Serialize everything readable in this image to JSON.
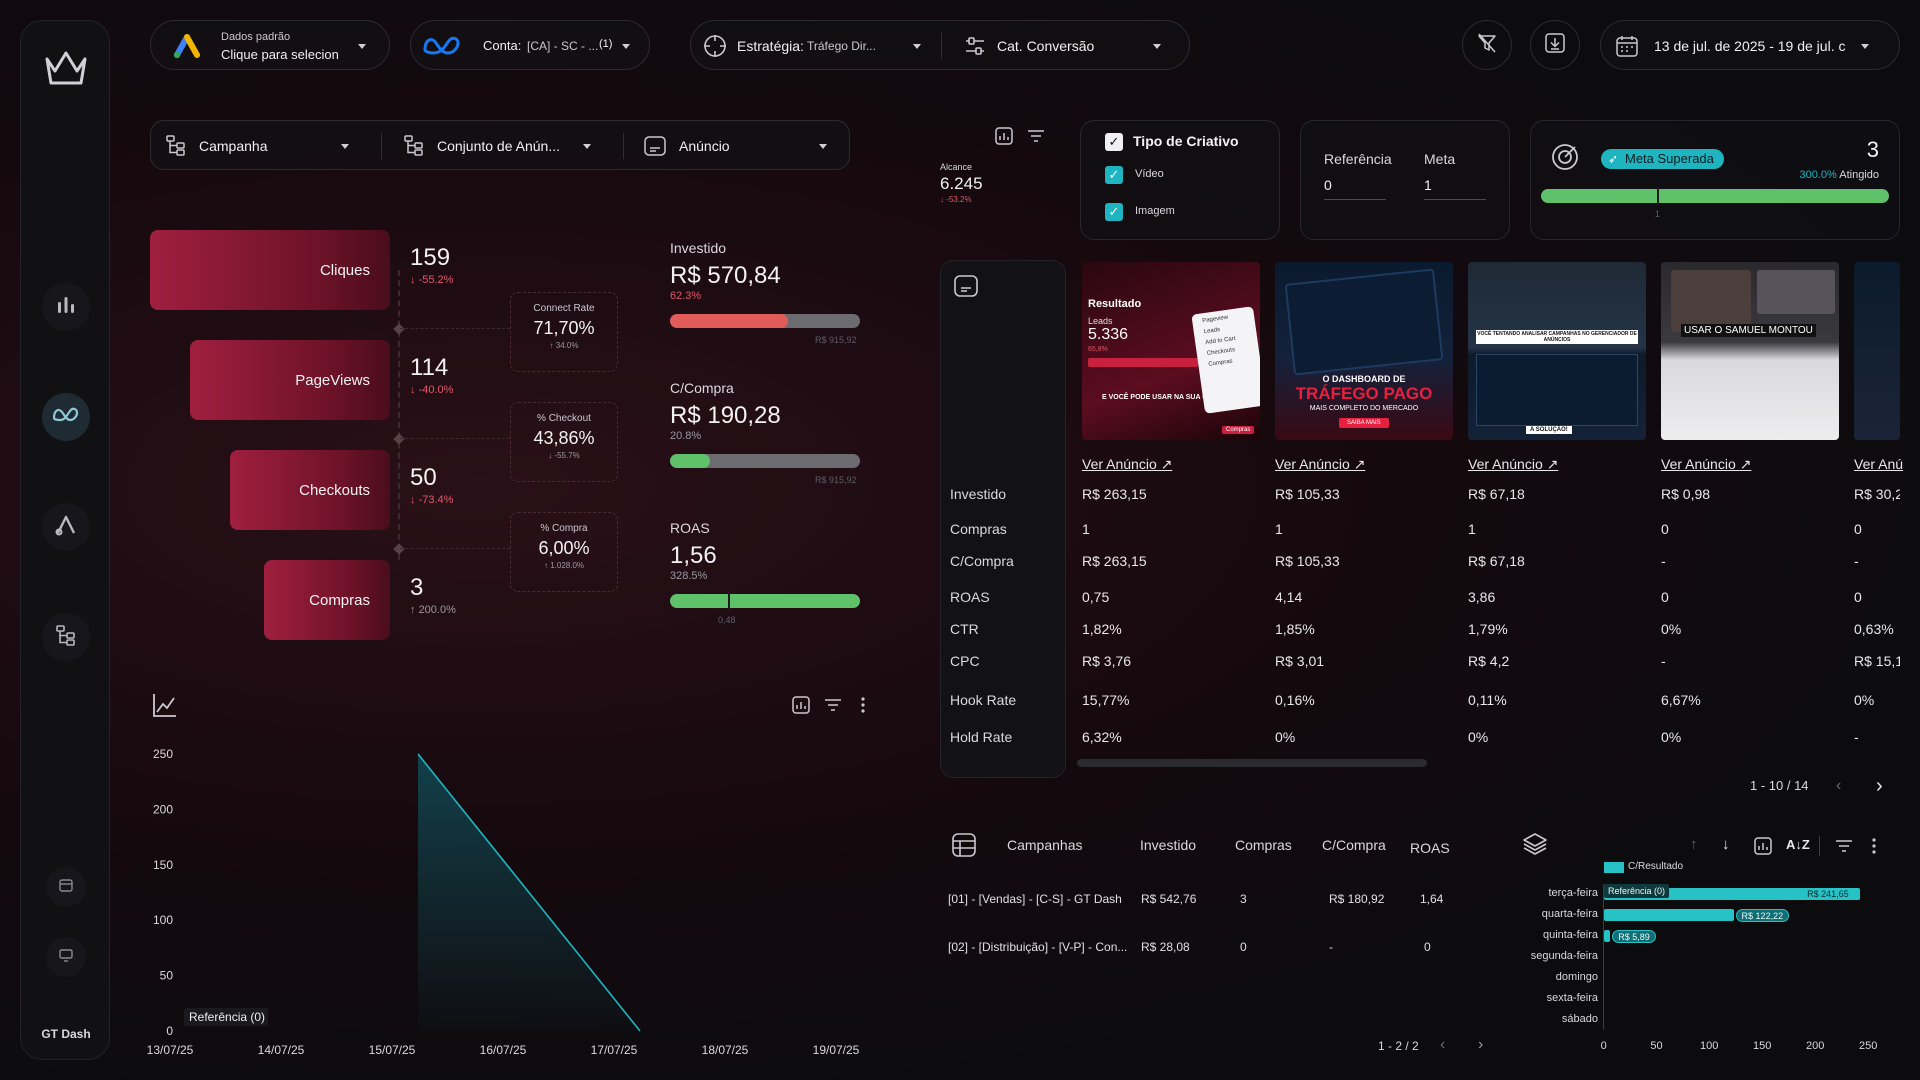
{
  "brand_name": "GT Dash",
  "header": {
    "account_selector": {
      "line1": "Dados padrão",
      "line2": "Clique para selecion"
    },
    "conta": {
      "label": "Conta:",
      "value": "[CA] - SC - ...",
      "count": "(1)"
    },
    "estrategia": {
      "label": "Estratégia:",
      "value": "Tráfego Dir..."
    },
    "cat_conversao": {
      "label": "Cat. Conversão"
    },
    "date_range": "13 de jul. de 2025 - 19 de jul. c"
  },
  "filters": {
    "campanha": "Campanha",
    "conjunto": "Conjunto de Anún...",
    "anuncio": "Anúncio"
  },
  "funnel": {
    "stages": [
      {
        "label": "Cliques",
        "value": "159",
        "change": "-55.2%",
        "direction": "down"
      },
      {
        "label": "PageViews",
        "value": "114",
        "change": "-40.0%",
        "direction": "down"
      },
      {
        "label": "Checkouts",
        "value": "50",
        "change": "-73.4%",
        "direction": "down"
      },
      {
        "label": "Compras",
        "value": "3",
        "change": "200.0%",
        "direction": "up"
      }
    ],
    "rates": [
      {
        "title": "Connect Rate",
        "value": "71,70%",
        "change": "34.0%",
        "direction": "up"
      },
      {
        "title": "% Checkout",
        "value": "43,86%",
        "change": "-55.7%",
        "direction": "down"
      },
      {
        "title": "% Compra",
        "value": "6,00%",
        "change": "1.028.0%",
        "direction": "up"
      }
    ]
  },
  "metrics": [
    {
      "title": "Investido",
      "value": "R$ 570,84",
      "pct": "62.3%",
      "direction": "down",
      "fill": 0.623,
      "color": "#e25b5b",
      "max": "R$ 915,92",
      "marker": ""
    },
    {
      "title": "C/Compra",
      "value": "R$ 190,28",
      "pct": "20.8%",
      "direction": "up",
      "fill": 0.208,
      "color": "#5fc16a",
      "max": "R$ 915,92",
      "marker": ""
    },
    {
      "title": "ROAS",
      "value": "1,56",
      "pct": "328.5%",
      "direction": "up",
      "fill": 1.0,
      "color": "#5fc16a",
      "max": "",
      "marker": "0,48",
      "marker_frac": 0.307
    }
  ],
  "alcance": {
    "label": "Alcance",
    "value": "6.245",
    "change": "-53.2%"
  },
  "tipo_criativo": {
    "title": "Tipo de Criativo",
    "options": [
      "Vídeo",
      "Imagem"
    ]
  },
  "referencia": {
    "label": "Referência",
    "value": "0"
  },
  "meta": {
    "label": "Meta",
    "value": "1"
  },
  "meta_superada": {
    "label": "Meta Superada",
    "count": "3",
    "pct": "300.0%",
    "atingido": "Atingido",
    "marker": "1",
    "progress": 1.0,
    "marker_frac": 0.333
  },
  "creatives": {
    "row_labels": [
      "Investido",
      "Compras",
      "C/Compra",
      "ROAS",
      "CTR",
      "CPC",
      "Hook Rate",
      "Hold Rate"
    ],
    "link_text": "Ver Anúncio ↗",
    "columns": [
      {
        "values": [
          "R$ 263,15",
          "1",
          "R$ 263,15",
          "0,75",
          "1,82%",
          "R$ 3,76",
          "15,77%",
          "6,32%"
        ],
        "thumb": {
          "t1": "Resultado",
          "t2": "Leads",
          "t3": "5.336",
          "t4": "65,8%",
          "t5": "E VOCÊ PODE USAR NA SUA OPERAÇÃO",
          "m1": "Pageview",
          "m2": "Leads",
          "m3": "Add to Cart",
          "m4": "Checkouts",
          "m5": "Compras",
          "m6": "Compras"
        }
      },
      {
        "values": [
          "R$ 105,33",
          "1",
          "R$ 105,33",
          "4,14",
          "1,85%",
          "R$ 3,01",
          "0,16%",
          "0%"
        ],
        "thumb": {
          "t1": "O DASHBOARD DE",
          "t2": "TRÁFEGO PAGO",
          "t3": "MAIS COMPLETO DO MERCADO",
          "t4": "SAIBA MAIS"
        }
      },
      {
        "values": [
          "R$ 67,18",
          "1",
          "R$ 67,18",
          "3,86",
          "1,79%",
          "R$ 4,2",
          "0,11%",
          "0%"
        ],
        "thumb": {
          "t1": "VOCÊ TENTANDO ANALISAR CAMPANHAS NO GERENCIADOR DE ANÚNCIOS",
          "t2": "A SOLUÇÃO!"
        }
      },
      {
        "values": [
          "R$ 0,98",
          "0",
          "-",
          "0",
          "0%",
          "-",
          "6,67%",
          "0%"
        ],
        "thumb": {
          "t1": "USAR O SAMUEL MONTOU"
        }
      },
      {
        "values": [
          "R$ 30,2",
          "0",
          "-",
          "0",
          "0,63%",
          "R$ 15,1",
          "0%",
          "-"
        ],
        "link_text": "Ver Anú"
      }
    ],
    "pagination": "1 - 10 / 14"
  },
  "campaigns": {
    "headers": [
      "Campanhas",
      "Investido",
      "Compras",
      "C/Compra",
      "ROAS"
    ],
    "rows": [
      [
        "[01] - [Vendas] - [C-S] - GT Dash",
        "R$ 542,76",
        "3",
        "R$ 180,92",
        "1,64"
      ],
      [
        "[02] - [Distribuição] - [V-P] - Con...",
        "R$ 28,08",
        "0",
        "-",
        "0"
      ]
    ],
    "pagination": "1 - 2 / 2"
  },
  "day_chart": {
    "type": "bar",
    "legend": "C/Resultado",
    "reference_label": "Referência (0)",
    "categories": [
      "terça-feira",
      "quarta-feira",
      "quinta-feira",
      "segunda-feira",
      "domingo",
      "sexta-feira",
      "sábado"
    ],
    "values": [
      241.65,
      122.22,
      5.89,
      0,
      0,
      0,
      0
    ],
    "value_labels": [
      "R$ 241,65",
      "R$ 122,22",
      "R$ 5,89",
      "",
      "",
      "",
      ""
    ],
    "xlim": [
      0,
      250
    ],
    "xticks": [
      "0",
      "50",
      "100",
      "150",
      "200",
      "250"
    ]
  },
  "chart_data": {
    "type": "area",
    "x": [
      "13/07/25",
      "14/07/25",
      "15/07/25",
      "16/07/25",
      "17/07/25",
      "18/07/25",
      "19/07/25"
    ],
    "series": [
      {
        "values": [
          null,
          null,
          250,
          null,
          0,
          null,
          null
        ]
      }
    ],
    "yticks": [
      "0",
      "50",
      "100",
      "150",
      "200",
      "250"
    ],
    "ylim": [
      0,
      250
    ],
    "reference_label": "Referência (0)",
    "color": "#1fb5c0"
  }
}
